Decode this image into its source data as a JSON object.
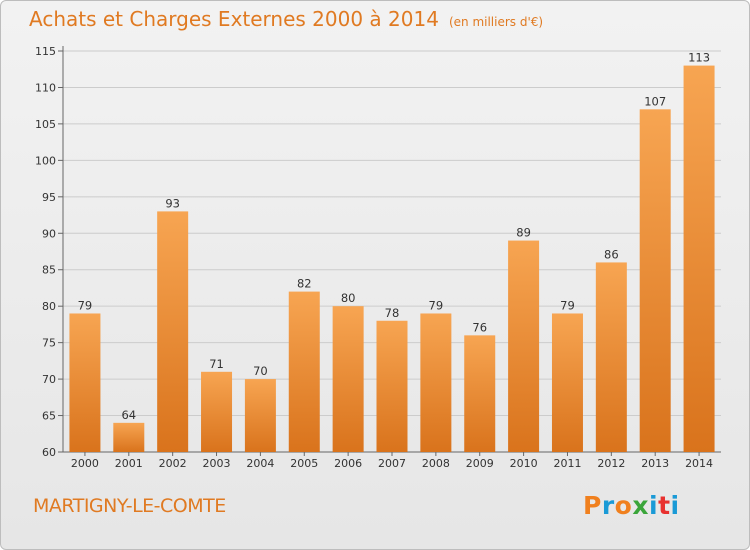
{
  "chart_data": {
    "type": "bar",
    "title": "Achats et Charges Externes 2000 à 2014",
    "subtitle": "(en milliers d'€)",
    "categories": [
      "2000",
      "2001",
      "2002",
      "2003",
      "2004",
      "2005",
      "2006",
      "2007",
      "2008",
      "2009",
      "2010",
      "2011",
      "2012",
      "2013",
      "2014"
    ],
    "values": [
      79,
      64,
      93,
      71,
      70,
      82,
      80,
      78,
      79,
      76,
      89,
      79,
      86,
      107,
      113
    ],
    "xlabel": "",
    "ylabel": "",
    "ylim": [
      60,
      115
    ],
    "yticks": [
      60,
      65,
      70,
      75,
      80,
      85,
      90,
      95,
      100,
      105,
      110,
      115
    ],
    "grid": true,
    "colors": {
      "bar_top": "#f7a552",
      "bar_bottom": "#d9731c",
      "grid": "#cccccc",
      "text": "#e07a22"
    }
  },
  "footer": {
    "location": "MARTIGNY-LE-COMTE",
    "brand": "Proxiti",
    "brand_colors": [
      "#f0801e",
      "#1a9ad6",
      "#f0801e",
      "#3aa53a",
      "#1a9ad6",
      "#e8312f",
      "#1a9ad6"
    ]
  }
}
